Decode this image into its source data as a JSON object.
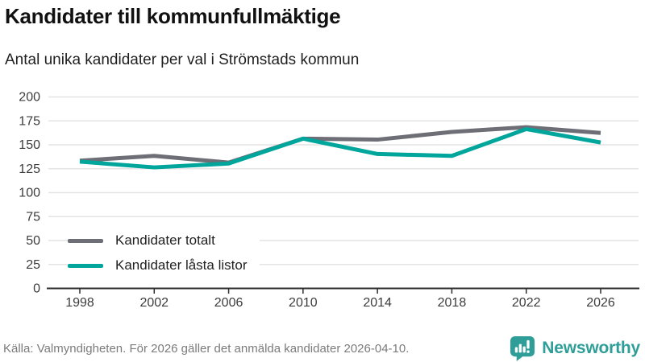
{
  "header": {
    "title": "Kandidater till kommunfullmäktige",
    "subtitle": "Antal unika kandidater per val i Strömstads kommun"
  },
  "chart_data": {
    "type": "line",
    "title": "Kandidater till kommunfullmäktige",
    "subtitle": "Antal unika kandidater per val i Strömstads kommun",
    "x": [
      1998,
      2002,
      2006,
      2010,
      2014,
      2018,
      2022,
      2026
    ],
    "series": [
      {
        "name": "Kandidater totalt",
        "color": "#6e6e76",
        "values": [
          133,
          138,
          131,
          156,
          155,
          163,
          168,
          162
        ]
      },
      {
        "name": "Kandidater låsta listor",
        "color": "#00a69b",
        "values": [
          132,
          126,
          130,
          156,
          140,
          138,
          166,
          152
        ]
      }
    ],
    "xlabel": "",
    "ylabel": "",
    "ylim": [
      0,
      200
    ],
    "yticks": [
      0,
      25,
      50,
      75,
      100,
      125,
      150,
      175,
      200
    ],
    "grid": true,
    "legend_position": "inside-bottom-left"
  },
  "footer": {
    "source": "Källa: Valmyndigheten. För 2026 gäller det anmälda kandidater 2026-04-10.",
    "brand": "Newsworthy"
  },
  "colors": {
    "accent_teal": "#00a69b",
    "line_gray": "#6e6e76",
    "brand_teal": "#2f9e99",
    "grid": "#e4e4e4",
    "axis": "#2d2d2d",
    "tick_text": "#3c3c3c",
    "muted_text": "#7b7b7b"
  }
}
